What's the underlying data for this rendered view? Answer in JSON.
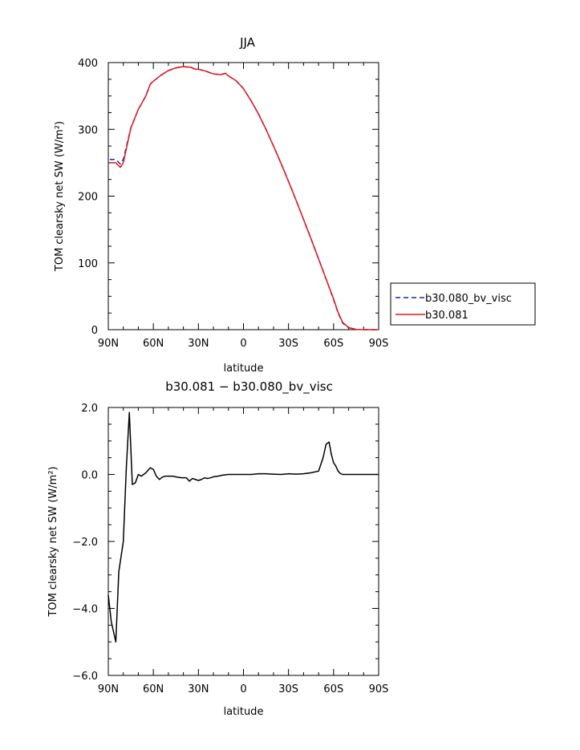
{
  "chart_data": [
    {
      "type": "line",
      "title": "JJA",
      "xlabel": "latitude",
      "ylabel": "TOM clearsky net SW (W/m²)",
      "xlim": [
        90,
        -90
      ],
      "ylim": [
        0,
        400
      ],
      "x_ticks": [
        90,
        60,
        30,
        0,
        -30,
        -60,
        -90
      ],
      "x_tick_labels": [
        "90N",
        "60N",
        "30N",
        "0",
        "30S",
        "60S",
        "90S"
      ],
      "y_ticks": [
        0,
        100,
        200,
        300,
        400
      ],
      "y_tick_labels": [
        "0",
        "100",
        "200",
        "300",
        "400"
      ],
      "legend_position": "right",
      "series": [
        {
          "name": "b30.080_bv_visc",
          "color": "#1f1fbf",
          "dash": "dashed",
          "x": [
            89,
            85,
            82,
            80,
            75,
            70,
            65,
            62,
            60,
            55,
            50,
            45,
            40,
            35,
            32,
            30,
            25,
            20,
            15,
            12,
            10,
            5,
            0,
            -5,
            -10,
            -15,
            -20,
            -25,
            -30,
            -35,
            -40,
            -45,
            -50,
            -55,
            -60,
            -63,
            -66,
            -70,
            -75,
            -80,
            -85,
            -89
          ],
          "y": [
            255,
            255,
            248,
            255,
            302,
            330,
            350,
            368,
            372,
            381,
            388,
            392,
            394,
            393,
            390,
            390,
            387,
            383,
            382,
            384,
            380,
            373,
            361,
            343,
            323,
            300,
            275,
            249,
            222,
            194,
            165,
            136,
            106,
            76,
            45,
            25,
            10,
            3,
            0.5,
            0,
            0,
            0
          ]
        },
        {
          "name": "b30.081",
          "color": "#e01818",
          "dash": "solid",
          "x": [
            89,
            85,
            82,
            80,
            75,
            70,
            65,
            62,
            60,
            55,
            50,
            45,
            40,
            35,
            32,
            30,
            25,
            20,
            15,
            12,
            10,
            5,
            0,
            -5,
            -10,
            -15,
            -20,
            -25,
            -30,
            -35,
            -40,
            -45,
            -50,
            -55,
            -60,
            -63,
            -66,
            -70,
            -75,
            -80,
            -85,
            -89
          ],
          "y": [
            250,
            250,
            243,
            250,
            302,
            330,
            350,
            368,
            372,
            381,
            388,
            392,
            394,
            393,
            390,
            390,
            387,
            383,
            382,
            384,
            380,
            373,
            361,
            343,
            323,
            300,
            275,
            249,
            222,
            194,
            165,
            136,
            106,
            76,
            46,
            26,
            11,
            3,
            0.5,
            0,
            0,
            0
          ]
        }
      ]
    },
    {
      "type": "line",
      "title": "b30.081 − b30.080_bv_visc",
      "xlabel": "latitude",
      "ylabel": "TOM clearsky net SW (W/m²)",
      "xlim": [
        90,
        -90
      ],
      "ylim": [
        -6,
        2
      ],
      "x_ticks": [
        90,
        60,
        30,
        0,
        -30,
        -60,
        -90
      ],
      "x_tick_labels": [
        "90N",
        "60N",
        "30N",
        "0",
        "30S",
        "60S",
        "90S"
      ],
      "y_ticks": [
        -6,
        -4,
        -2,
        0,
        2
      ],
      "y_tick_labels": [
        "−6.0",
        "−4.0",
        "−2.0",
        "0.0",
        "2.0"
      ],
      "series": [
        {
          "color": "#000000",
          "dash": "solid",
          "x": [
            90,
            88,
            85,
            83,
            80,
            78,
            76,
            74,
            72,
            70,
            68,
            65,
            62,
            60,
            58,
            56,
            54,
            52,
            50,
            47,
            44,
            41,
            38,
            36,
            34,
            32,
            30,
            28,
            26,
            24,
            22,
            20,
            17,
            14,
            10,
            5,
            0,
            -5,
            -10,
            -15,
            -20,
            -25,
            -30,
            -35,
            -40,
            -45,
            -50,
            -53,
            -55,
            -57,
            -58.5,
            -60,
            -61.5,
            -63,
            -64.5,
            -66,
            -68,
            -70,
            -75,
            -80,
            -85,
            -90
          ],
          "y": [
            -3.6,
            -4.4,
            -5.0,
            -2.9,
            -2.0,
            0.2,
            1.85,
            -0.3,
            -0.25,
            0.0,
            -0.05,
            0.05,
            0.2,
            0.15,
            -0.05,
            -0.15,
            -0.08,
            -0.05,
            -0.05,
            -0.05,
            -0.08,
            -0.1,
            -0.1,
            -0.2,
            -0.12,
            -0.15,
            -0.18,
            -0.15,
            -0.1,
            -0.12,
            -0.1,
            -0.07,
            -0.05,
            -0.02,
            0.0,
            0.0,
            0.0,
            0.0,
            0.02,
            0.02,
            0.01,
            0.0,
            0.02,
            0.01,
            0.02,
            0.05,
            0.1,
            0.5,
            0.9,
            0.97,
            0.6,
            0.35,
            0.25,
            0.1,
            0.03,
            0.0,
            0.0,
            0.0,
            0.0,
            0.0,
            0.0,
            0.0
          ]
        }
      ]
    }
  ]
}
